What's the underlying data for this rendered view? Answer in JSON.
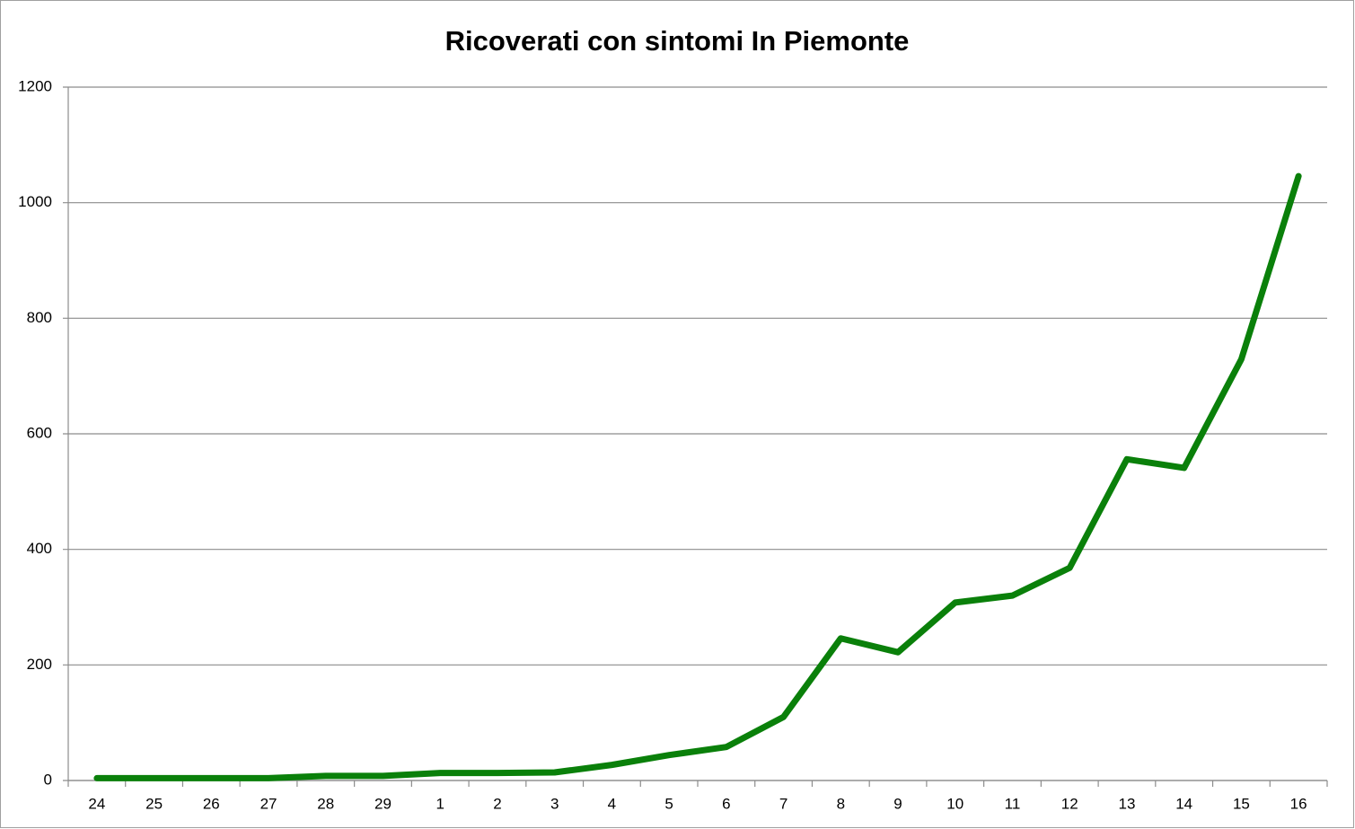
{
  "chart_data": {
    "type": "line",
    "title": "Ricoverati con sintomi In Piemonte",
    "categories": [
      "24",
      "25",
      "26",
      "27",
      "28",
      "29",
      "1",
      "2",
      "3",
      "4",
      "5",
      "6",
      "7",
      "8",
      "9",
      "10",
      "11",
      "12",
      "13",
      "14",
      "15",
      "16"
    ],
    "values": [
      4,
      4,
      4,
      4,
      8,
      8,
      13,
      13,
      14,
      27,
      44,
      58,
      110,
      246,
      222,
      308,
      320,
      368,
      556,
      541,
      729,
      1046
    ],
    "color": "#0a800a",
    "ylim": [
      0,
      1200
    ],
    "yticks": [
      0,
      200,
      400,
      600,
      800,
      1000,
      1200
    ],
    "grid": true
  }
}
